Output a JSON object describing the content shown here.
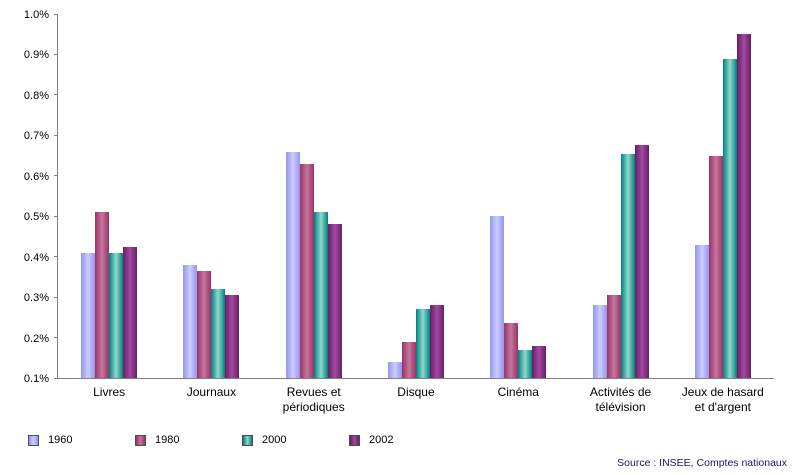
{
  "chart_data": {
    "type": "bar",
    "title": "",
    "unit": "%",
    "categories": [
      "Livres",
      "Journaux",
      "Revues et périodiques",
      "Disque",
      "Cinéma",
      "Activités de télévision",
      "Jeux de hasard et d'argent"
    ],
    "series": [
      {
        "name": "1960",
        "color_edge": "#9595ec",
        "color_center": "#ccccff",
        "values": [
          0.41,
          0.38,
          0.66,
          0.14,
          0.5,
          0.28,
          0.43
        ]
      },
      {
        "name": "1980",
        "color_edge": "#993366",
        "color_center": "#c4759d",
        "values": [
          0.51,
          0.365,
          0.63,
          0.19,
          0.235,
          0.305,
          0.65
        ]
      },
      {
        "name": "2000",
        "color_edge": "#008080",
        "color_center": "#8fd8cc",
        "values": [
          0.41,
          0.32,
          0.51,
          0.27,
          0.17,
          0.655,
          0.89
        ]
      },
      {
        "name": "2002",
        "color_edge": "#661f66",
        "color_center": "#a348a3",
        "values": [
          0.425,
          0.305,
          0.48,
          0.28,
          0.18,
          0.675,
          0.95
        ]
      }
    ],
    "ylim": [
      0.1,
      1.0
    ],
    "yticks": [
      "0.1%",
      "0.2%",
      "0.3%",
      "0.4%",
      "0.5%",
      "0.6%",
      "0.7%",
      "0.8%",
      "0.9%",
      "1.0%"
    ],
    "grid": false,
    "legend_position": "bottom",
    "source": "Source : INSEE, Comptes nationaux"
  }
}
